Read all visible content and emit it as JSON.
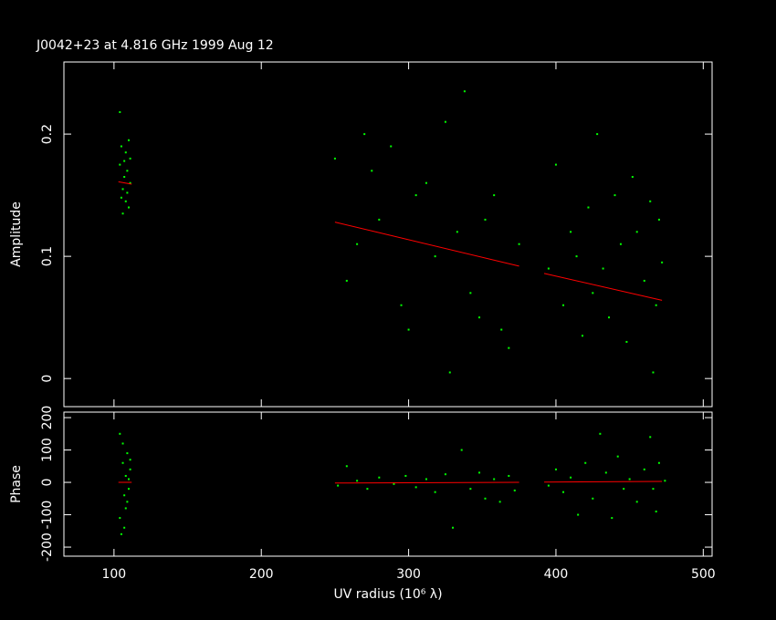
{
  "chart_data": [
    {
      "type": "scatter",
      "title": "J0042+23 at 4.816 GHz 1999 Aug 12",
      "ylabel": "Amplitude",
      "xlim": [
        66,
        506
      ],
      "ylim": [
        -0.023,
        0.259
      ],
      "yticks": [
        0,
        0.1,
        0.2
      ],
      "series": [
        {
          "type": "scatter",
          "color": "#00ff00",
          "x": [
            104,
            105,
            106,
            107,
            108,
            108,
            109,
            110,
            110,
            111,
            104,
            106,
            109,
            107,
            111,
            105,
            250,
            258,
            265,
            270,
            275,
            280,
            288,
            295,
            300,
            305,
            312,
            318,
            325,
            328,
            333,
            338,
            342,
            348,
            352,
            358,
            363,
            368,
            375,
            395,
            400,
            405,
            410,
            414,
            418,
            422,
            425,
            428,
            432,
            436,
            440,
            444,
            448,
            452,
            455,
            460,
            464,
            466,
            468,
            470,
            472
          ],
          "values": [
            0.175,
            0.19,
            0.155,
            0.165,
            0.145,
            0.185,
            0.17,
            0.14,
            0.195,
            0.16,
            0.218,
            0.135,
            0.152,
            0.178,
            0.18,
            0.148,
            0.18,
            0.08,
            0.11,
            0.2,
            0.17,
            0.13,
            0.19,
            0.06,
            0.04,
            0.15,
            0.16,
            0.1,
            0.21,
            0.005,
            0.12,
            0.235,
            0.07,
            0.05,
            0.13,
            0.15,
            0.04,
            0.025,
            0.11,
            0.09,
            0.175,
            0.06,
            0.12,
            0.1,
            0.035,
            0.14,
            0.07,
            0.2,
            0.09,
            0.05,
            0.15,
            0.11,
            0.03,
            0.165,
            0.12,
            0.08,
            0.145,
            0.005,
            0.06,
            0.13,
            0.095
          ]
        },
        {
          "type": "line",
          "color": "#ff0000",
          "x": [
            103,
            112,
            null,
            250,
            375,
            null,
            392,
            472
          ],
          "values": [
            0.161,
            0.159,
            null,
            0.128,
            0.092,
            null,
            0.086,
            0.064
          ]
        }
      ]
    },
    {
      "type": "scatter",
      "ylabel": "Phase",
      "xlabel": "UV radius  (10⁶ λ)",
      "xlim": [
        66,
        506
      ],
      "xticks": [
        100,
        200,
        300,
        400,
        500
      ],
      "ylim": [
        -228,
        217
      ],
      "yticks": [
        -200,
        -100,
        0,
        100,
        200
      ],
      "series": [
        {
          "type": "scatter",
          "color": "#00ff00",
          "x": [
            104,
            105,
            106,
            107,
            108,
            108,
            109,
            110,
            110,
            111,
            104,
            106,
            109,
            107,
            111,
            252,
            258,
            265,
            272,
            280,
            290,
            298,
            305,
            312,
            318,
            325,
            330,
            336,
            342,
            348,
            352,
            358,
            362,
            368,
            372,
            395,
            400,
            405,
            410,
            415,
            420,
            425,
            430,
            434,
            438,
            442,
            446,
            450,
            455,
            460,
            464,
            466,
            468,
            470,
            474
          ],
          "values": [
            150,
            -160,
            60,
            -40,
            20,
            -80,
            90,
            10,
            -20,
            40,
            -110,
            120,
            -60,
            -140,
            70,
            -10,
            50,
            5,
            -20,
            15,
            -5,
            20,
            -15,
            10,
            -30,
            25,
            -140,
            100,
            -20,
            30,
            -50,
            10,
            -60,
            20,
            -25,
            -10,
            40,
            -30,
            15,
            -100,
            60,
            -50,
            150,
            30,
            -110,
            80,
            -20,
            10,
            -60,
            40,
            140,
            -20,
            -90,
            60,
            5
          ]
        },
        {
          "type": "line",
          "color": "#ff0000",
          "x": [
            103,
            112,
            null,
            250,
            375,
            null,
            392,
            472
          ],
          "values": [
            0,
            0,
            null,
            -2,
            0,
            null,
            1,
            3
          ]
        }
      ]
    }
  ]
}
